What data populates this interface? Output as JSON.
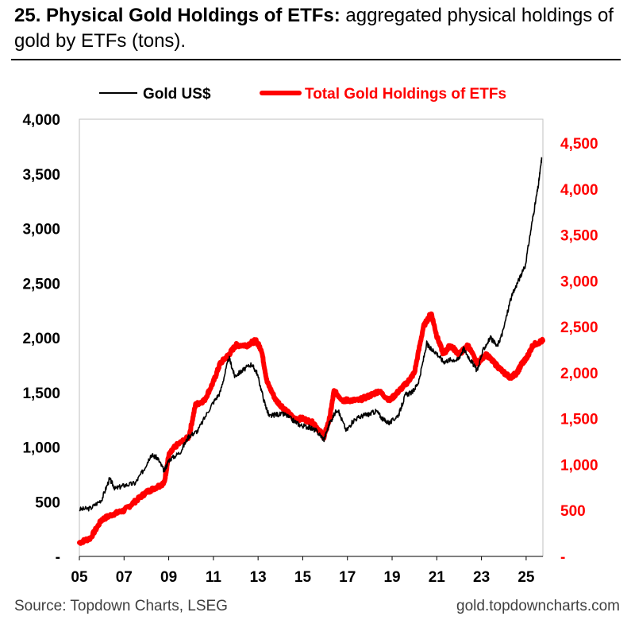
{
  "header": {
    "number": "25. Physical Gold Holdings of ETFs:",
    "subtitle": "aggregated physical holdings of gold by ETFs (tons)."
  },
  "footer": {
    "source": "Source: Topdown Charts, LSEG",
    "website": "gold.topdowncharts.com"
  },
  "colors": {
    "gold_line": "#000000",
    "etf_line": "#ff0000",
    "axis": "#000000",
    "right_axis": "#ff0000"
  },
  "chart_data": {
    "type": "line",
    "title": "25. Physical Gold Holdings of ETFs",
    "legend": [
      "Gold US$",
      "Total Gold Holdings of ETFs"
    ],
    "legend_position": "top",
    "x_ticks": [
      "05",
      "07",
      "09",
      "11",
      "13",
      "15",
      "17",
      "19",
      "21",
      "23",
      "25"
    ],
    "x_range": [
      2005.0,
      2025.75
    ],
    "left_axis": {
      "ticks": [
        "-",
        "500",
        "1,000",
        "1,500",
        "2,000",
        "2,500",
        "3,000",
        "3,500",
        "4,000"
      ],
      "ylim": [
        0,
        4000
      ]
    },
    "right_axis": {
      "ticks": [
        "-",
        "500",
        "1,000",
        "1,500",
        "2,000",
        "2,500",
        "3,000",
        "3,500",
        "4,000",
        "4,500"
      ],
      "ylim": [
        0,
        4760
      ]
    },
    "series": [
      {
        "name": "Gold US$",
        "axis": "left",
        "x": [
          2005.0,
          2005.5,
          2006.0,
          2006.35,
          2006.6,
          2007.0,
          2007.5,
          2007.9,
          2008.2,
          2008.5,
          2008.8,
          2009.0,
          2009.5,
          2009.9,
          2010.3,
          2010.9,
          2011.3,
          2011.7,
          2011.95,
          2012.3,
          2012.7,
          2012.95,
          2013.3,
          2013.5,
          2013.8,
          2014.2,
          2014.6,
          2014.9,
          2015.3,
          2015.6,
          2015.95,
          2016.2,
          2016.55,
          2016.95,
          2017.3,
          2017.7,
          2017.95,
          2018.3,
          2018.6,
          2018.9,
          2019.3,
          2019.6,
          2019.9,
          2020.2,
          2020.55,
          2020.7,
          2020.95,
          2021.3,
          2021.6,
          2021.95,
          2022.2,
          2022.5,
          2022.8,
          2023.1,
          2023.4,
          2023.7,
          2023.95,
          2024.3,
          2024.6,
          2024.95,
          2025.3,
          2025.55,
          2025.7
        ],
        "values": [
          430,
          440,
          520,
          710,
          620,
          650,
          670,
          800,
          930,
          900,
          780,
          880,
          950,
          1100,
          1150,
          1380,
          1500,
          1820,
          1650,
          1700,
          1760,
          1680,
          1400,
          1280,
          1300,
          1300,
          1240,
          1200,
          1180,
          1150,
          1070,
          1220,
          1350,
          1150,
          1250,
          1290,
          1300,
          1330,
          1250,
          1220,
          1300,
          1480,
          1500,
          1600,
          1950,
          1900,
          1870,
          1780,
          1800,
          1800,
          1900,
          1800,
          1700,
          1900,
          2000,
          1920,
          2050,
          2350,
          2500,
          2650,
          3100,
          3400,
          3650
        ]
      },
      {
        "name": "Total Gold Holdings of ETFs",
        "axis": "right",
        "x": [
          2005.0,
          2005.5,
          2006.0,
          2006.5,
          2007.0,
          2007.5,
          2008.0,
          2008.5,
          2008.8,
          2009.0,
          2009.3,
          2009.9,
          2010.2,
          2010.6,
          2011.0,
          2011.3,
          2011.7,
          2012.0,
          2012.5,
          2012.9,
          2013.15,
          2013.4,
          2013.8,
          2014.2,
          2014.6,
          2015.0,
          2015.5,
          2015.95,
          2016.2,
          2016.4,
          2016.8,
          2017.0,
          2017.5,
          2018.0,
          2018.4,
          2018.9,
          2019.3,
          2019.7,
          2020.0,
          2020.4,
          2020.75,
          2021.0,
          2021.3,
          2021.6,
          2022.0,
          2022.4,
          2022.8,
          2023.2,
          2023.6,
          2024.0,
          2024.3,
          2024.6,
          2024.8,
          2025.0,
          2025.3,
          2025.75
        ],
        "values": [
          150,
          200,
          400,
          460,
          500,
          600,
          700,
          760,
          800,
          1100,
          1200,
          1300,
          1650,
          1700,
          1900,
          2100,
          2200,
          2300,
          2300,
          2350,
          2250,
          1900,
          1700,
          1600,
          1500,
          1500,
          1450,
          1300,
          1500,
          1800,
          1700,
          1700,
          1700,
          1750,
          1800,
          1700,
          1800,
          1900,
          2000,
          2500,
          2650,
          2400,
          2200,
          2300,
          2200,
          2300,
          2100,
          2200,
          2100,
          2000,
          1950,
          2000,
          2100,
          2150,
          2300,
          2350
        ]
      }
    ]
  }
}
